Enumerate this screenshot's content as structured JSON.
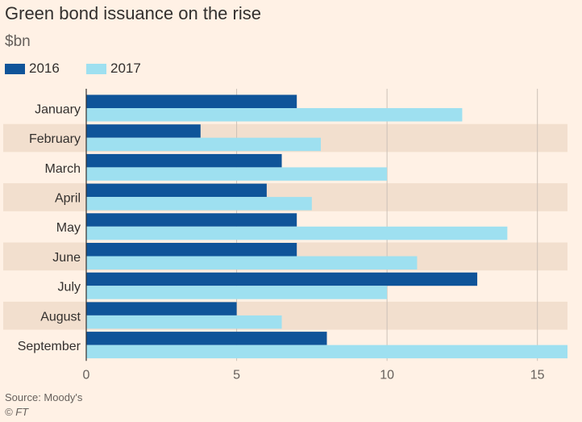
{
  "header": {
    "title": "Green bond issuance on the rise",
    "subtitle": "$bn"
  },
  "legend": [
    {
      "label": "2016",
      "color": "#0F5499"
    },
    {
      "label": "2017",
      "color": "#9EE0F0"
    }
  ],
  "footer": {
    "source": "Source: Moody's",
    "copyright": "© FT"
  },
  "colors": {
    "background": "#FFF1E5",
    "band": "#F2DFCE",
    "gridline": "#CCC1B7",
    "series_2016": "#0F5499",
    "series_2017": "#9EE0F0"
  },
  "chart_data": {
    "type": "bar",
    "orientation": "horizontal",
    "title": "Green bond issuance on the rise",
    "subtitle": "$bn",
    "categories": [
      "January",
      "February",
      "March",
      "April",
      "May",
      "June",
      "July",
      "August",
      "September"
    ],
    "series": [
      {
        "name": "2016",
        "values": [
          7.0,
          3.8,
          6.5,
          6.0,
          7.0,
          7.0,
          13.0,
          5.0,
          8.0
        ]
      },
      {
        "name": "2017",
        "values": [
          12.5,
          7.8,
          10.0,
          7.5,
          14.0,
          11.0,
          10.0,
          6.5,
          16.0
        ]
      }
    ],
    "xlim": [
      0,
      16
    ],
    "xticks": [
      0,
      5,
      10,
      15
    ],
    "xtick_labels": [
      "0",
      "5",
      "10",
      "15"
    ],
    "grid": true,
    "legend_position": "top-left"
  }
}
